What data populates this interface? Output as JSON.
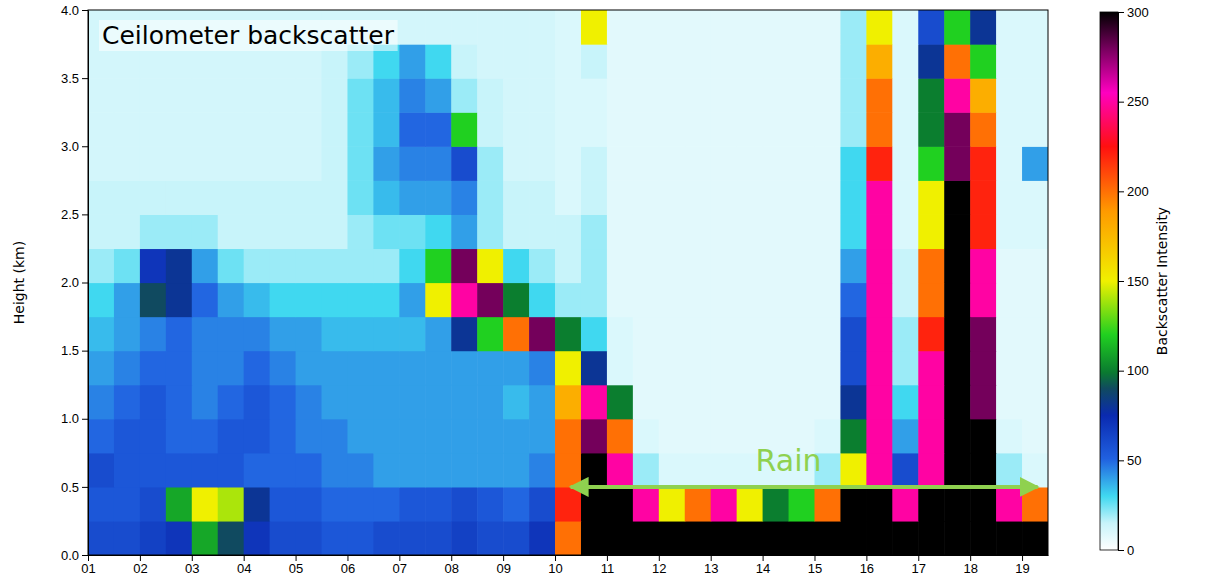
{
  "chart_data": {
    "type": "heatmap",
    "title": "Ceilometer backscatter",
    "y_label": "Height (km)",
    "xlim": [
      1,
      19.5
    ],
    "ylim": [
      0,
      4
    ],
    "xticks": [
      {
        "value": 1,
        "label": "01"
      },
      {
        "value": 2,
        "label": "02"
      },
      {
        "value": 3,
        "label": "03"
      },
      {
        "value": 4,
        "label": "04"
      },
      {
        "value": 5,
        "label": "05"
      },
      {
        "value": 6,
        "label": "06"
      },
      {
        "value": 7,
        "label": "07"
      },
      {
        "value": 8,
        "label": "08"
      },
      {
        "value": 9,
        "label": "09"
      },
      {
        "value": 10,
        "label": "10"
      },
      {
        "value": 11,
        "label": "11"
      },
      {
        "value": 12,
        "label": "12"
      },
      {
        "value": 13,
        "label": "13"
      },
      {
        "value": 14,
        "label": "14"
      },
      {
        "value": 15,
        "label": "15"
      },
      {
        "value": 16,
        "label": "16"
      },
      {
        "value": 17,
        "label": "17"
      },
      {
        "value": 18,
        "label": "18"
      },
      {
        "value": 19,
        "label": "19"
      }
    ],
    "yticks": [
      {
        "value": 0,
        "label": "0.0"
      },
      {
        "value": 0.5,
        "label": "0.5"
      },
      {
        "value": 1,
        "label": "1.0"
      },
      {
        "value": 1.5,
        "label": "1.5"
      },
      {
        "value": 2,
        "label": "2.0"
      },
      {
        "value": 2.5,
        "label": "2.5"
      },
      {
        "value": 3,
        "label": "3.0"
      },
      {
        "value": 3.5,
        "label": "3.5"
      },
      {
        "value": 4,
        "label": "4.0"
      }
    ],
    "x_bins": [
      1,
      1.5,
      2,
      2.5,
      3,
      3.5,
      4,
      4.5,
      5,
      5.5,
      6,
      6.5,
      7,
      7.5,
      8,
      8.5,
      9,
      9.5,
      10,
      10.5,
      11,
      11.5,
      12,
      12.5,
      13,
      13.5,
      14,
      14.5,
      15,
      15.5,
      16,
      16.5,
      17,
      17.5,
      18,
      18.5,
      19,
      19.5
    ],
    "y_bins": [
      0,
      0.25,
      0.5,
      0.75,
      1,
      1.25,
      1.5,
      1.75,
      2,
      2.25,
      2.5,
      2.75,
      3,
      3.25,
      3.5,
      3.75,
      4
    ],
    "cells": [
      [
        60,
        60,
        65,
        70,
        110,
        90,
        70,
        60,
        60,
        55,
        55,
        60,
        60,
        60,
        65,
        60,
        60,
        70,
        200,
        300,
        300,
        300,
        300,
        300,
        300,
        300,
        300,
        300,
        300,
        300,
        300,
        300,
        300,
        300,
        300,
        300,
        300
      ],
      [
        55,
        55,
        60,
        110,
        150,
        140,
        80,
        55,
        55,
        50,
        50,
        50,
        55,
        55,
        60,
        55,
        50,
        60,
        220,
        300,
        300,
        250,
        150,
        200,
        250,
        150,
        100,
        120,
        200,
        300,
        300,
        250,
        300,
        300,
        300,
        250,
        200
      ],
      [
        60,
        55,
        55,
        55,
        55,
        55,
        50,
        50,
        50,
        45,
        45,
        40,
        40,
        40,
        40,
        40,
        40,
        45,
        200,
        300,
        250,
        20,
        10,
        10,
        10,
        10,
        10,
        10,
        20,
        150,
        250,
        60,
        250,
        300,
        300,
        20,
        10
      ],
      [
        50,
        55,
        55,
        50,
        50,
        55,
        55,
        50,
        45,
        45,
        40,
        40,
        40,
        40,
        40,
        40,
        40,
        40,
        200,
        280,
        200,
        10,
        8,
        8,
        8,
        8,
        8,
        8,
        10,
        100,
        250,
        40,
        250,
        300,
        300,
        10,
        8
      ],
      [
        45,
        50,
        55,
        50,
        45,
        50,
        55,
        50,
        45,
        40,
        40,
        40,
        40,
        40,
        40,
        40,
        35,
        40,
        180,
        250,
        100,
        8,
        8,
        8,
        8,
        8,
        8,
        8,
        8,
        80,
        250,
        30,
        250,
        300,
        280,
        8,
        8
      ],
      [
        40,
        45,
        50,
        50,
        45,
        45,
        50,
        45,
        40,
        40,
        40,
        40,
        40,
        40,
        40,
        40,
        40,
        45,
        150,
        80,
        10,
        8,
        8,
        8,
        8,
        8,
        8,
        8,
        8,
        60,
        250,
        20,
        250,
        300,
        280,
        8,
        8
      ],
      [
        35,
        40,
        45,
        50,
        45,
        45,
        45,
        40,
        40,
        35,
        35,
        35,
        35,
        40,
        80,
        120,
        200,
        280,
        100,
        30,
        10,
        8,
        8,
        8,
        8,
        8,
        8,
        8,
        8,
        60,
        250,
        20,
        220,
        300,
        280,
        8,
        8
      ],
      [
        30,
        40,
        90,
        80,
        50,
        40,
        35,
        30,
        30,
        30,
        30,
        30,
        40,
        150,
        250,
        280,
        100,
        30,
        20,
        20,
        8,
        8,
        8,
        8,
        8,
        8,
        8,
        8,
        8,
        50,
        250,
        15,
        200,
        300,
        250,
        8,
        8
      ],
      [
        20,
        25,
        70,
        80,
        40,
        25,
        20,
        20,
        20,
        20,
        20,
        20,
        30,
        120,
        280,
        150,
        30,
        20,
        15,
        20,
        8,
        8,
        8,
        8,
        8,
        8,
        8,
        8,
        8,
        40,
        250,
        15,
        200,
        300,
        250,
        8,
        8
      ],
      [
        15,
        15,
        20,
        20,
        20,
        15,
        15,
        15,
        15,
        15,
        20,
        25,
        25,
        30,
        40,
        20,
        15,
        15,
        15,
        20,
        8,
        8,
        8,
        8,
        8,
        8,
        8,
        8,
        8,
        30,
        250,
        10,
        150,
        300,
        220,
        10,
        10
      ],
      [
        15,
        15,
        15,
        15,
        15,
        15,
        15,
        15,
        15,
        15,
        25,
        35,
        40,
        40,
        45,
        20,
        15,
        15,
        10,
        15,
        8,
        8,
        8,
        8,
        8,
        8,
        8,
        8,
        8,
        30,
        250,
        10,
        150,
        300,
        220,
        10,
        10
      ],
      [
        12,
        12,
        12,
        12,
        12,
        12,
        12,
        12,
        12,
        15,
        25,
        40,
        45,
        45,
        60,
        20,
        12,
        12,
        10,
        15,
        8,
        8,
        8,
        8,
        8,
        8,
        8,
        8,
        8,
        30,
        220,
        10,
        120,
        280,
        220,
        10,
        40
      ],
      [
        12,
        12,
        12,
        12,
        12,
        12,
        12,
        12,
        12,
        15,
        25,
        35,
        50,
        50,
        120,
        15,
        12,
        12,
        10,
        10,
        8,
        8,
        8,
        8,
        8,
        8,
        8,
        8,
        8,
        20,
        200,
        10,
        100,
        280,
        200,
        10,
        10
      ],
      [
        12,
        12,
        12,
        12,
        12,
        12,
        12,
        12,
        12,
        15,
        25,
        35,
        45,
        40,
        20,
        15,
        12,
        12,
        10,
        10,
        8,
        8,
        8,
        8,
        8,
        8,
        8,
        8,
        8,
        20,
        200,
        10,
        100,
        250,
        180,
        10,
        10
      ],
      [
        12,
        12,
        12,
        12,
        12,
        12,
        12,
        12,
        12,
        15,
        20,
        30,
        40,
        30,
        15,
        12,
        12,
        12,
        10,
        15,
        8,
        8,
        8,
        8,
        8,
        8,
        8,
        8,
        8,
        20,
        180,
        10,
        80,
        200,
        120,
        10,
        10
      ],
      [
        12,
        12,
        12,
        12,
        12,
        12,
        12,
        12,
        12,
        12,
        12,
        12,
        12,
        12,
        12,
        12,
        12,
        12,
        10,
        150,
        8,
        8,
        8,
        8,
        8,
        8,
        8,
        8,
        8,
        20,
        150,
        10,
        60,
        120,
        80,
        10,
        10
      ]
    ],
    "colorbar": {
      "label": "Backscatter Intensity",
      "range": [
        0,
        300
      ],
      "ticks": [
        0,
        50,
        100,
        150,
        200,
        250,
        300
      ]
    },
    "annotations": [
      {
        "text": "Rain",
        "x": 14.5,
        "y": 0.62,
        "arrow": {
          "x": [
            10.3,
            19.3
          ],
          "y": 0.5
        }
      }
    ]
  }
}
